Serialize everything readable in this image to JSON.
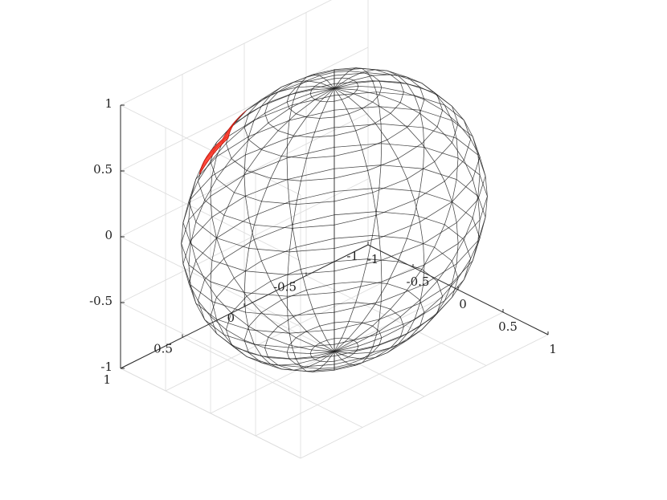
{
  "chart_data": {
    "type": "surface3d",
    "title": "",
    "xlabel": "",
    "ylabel": "",
    "zlabel": "",
    "xlim": [
      -1,
      1
    ],
    "ylim": [
      -1,
      1
    ],
    "zlim": [
      -1,
      1
    ],
    "grid": true,
    "colormap": "jet",
    "surface_alpha": 0.35,
    "series": [
      {
        "shape": "unit-sphere",
        "radius": 1,
        "center": [
          0,
          0,
          0
        ],
        "latitude_bands": 20,
        "longitude_segments": 20
      },
      {
        "shape": "surface-patch",
        "color": "#ff2a1a",
        "azimuth_range_deg": [
          130,
          160
        ],
        "elevation_range_deg": [
          28,
          46
        ]
      }
    ],
    "x_ticks": [
      "-1",
      "-0.5",
      "0",
      "0.5",
      "1"
    ],
    "y_ticks": [
      "-1",
      "-0.5",
      "0",
      "0.5",
      "1"
    ],
    "z_ticks": [
      "-1",
      "-0.5",
      "0",
      "0.5",
      "1"
    ]
  }
}
